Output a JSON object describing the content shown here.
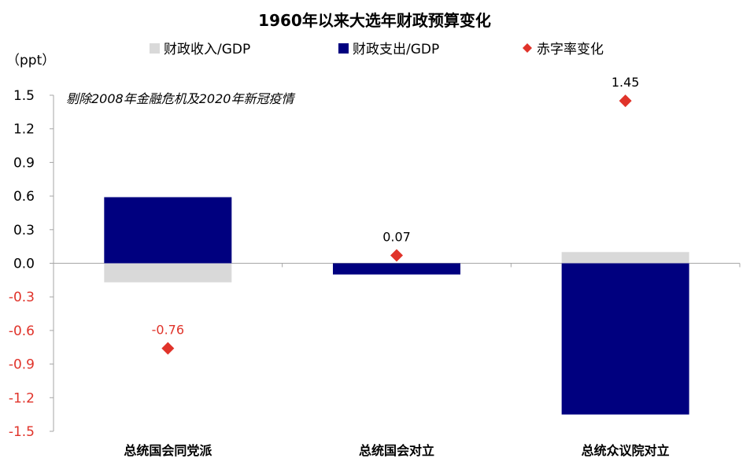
{
  "chart_data": {
    "type": "bar",
    "title": "1960年以来大选年财政预算变化",
    "ylabel": "（ppt）",
    "annotation": "剔除2008年金融危机及2020年新冠疫情",
    "ylim": [
      -1.5,
      1.5
    ],
    "yticks": [
      "1.5",
      "1.2",
      "0.9",
      "0.6",
      "0.3",
      "0.0",
      "-0.3",
      "-0.6",
      "-0.9",
      "-1.2",
      "-1.5"
    ],
    "ytick_values": [
      1.5,
      1.2,
      0.9,
      0.6,
      0.3,
      0.0,
      -0.3,
      -0.6,
      -0.9,
      -1.2,
      -1.5
    ],
    "categories": [
      "总统国会同党派",
      "总统国会对立",
      "总统众议院对立"
    ],
    "legend_position": "top",
    "grid": false,
    "series": [
      {
        "name": "财政收入/GDP",
        "kind": "bar",
        "color": "#d9d9d9",
        "values": [
          -0.17,
          0.0,
          0.1
        ]
      },
      {
        "name": "财政支出/GDP",
        "kind": "bar",
        "color": "#00007f",
        "values": [
          0.59,
          -0.1,
          -1.35
        ]
      },
      {
        "name": "赤字率变化",
        "kind": "scatter",
        "marker": "diamond",
        "color": "#e0332a",
        "values": [
          -0.76,
          0.07,
          1.45
        ],
        "labels": [
          "-0.76",
          "0.07",
          "1.45"
        ]
      }
    ],
    "colors": {
      "positive_tick": "#000000",
      "negative_tick": "#e0332a",
      "axis": "#a6a6a6"
    }
  }
}
